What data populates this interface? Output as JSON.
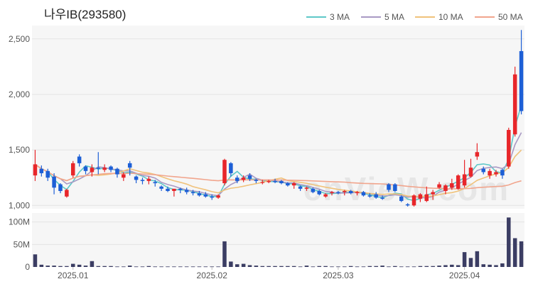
{
  "chart_data": [
    {
      "type": "candlestick",
      "title": "나우IB(293580)",
      "watermark": "enVieW.com",
      "x_ticks": [
        "2025.01",
        "2025.02",
        "2025.03",
        "2025.04"
      ],
      "y_ticks": [
        "1,000",
        "1,500",
        "2,000",
        "2,500"
      ],
      "ylim": [
        970,
        2620
      ],
      "legend": [
        {
          "label": "3 MA",
          "color": "#5ec8c8"
        },
        {
          "label": "5 MA",
          "color": "#a99ac4"
        },
        {
          "label": "10 MA",
          "color": "#f0c27a"
        },
        {
          "label": "50 MA",
          "color": "#f1a58d"
        }
      ],
      "colors": {
        "up": "#e8262a",
        "down": "#1d5fd6",
        "volume": "#3b3d63",
        "plot_bg": "#f6f6f6"
      },
      "series_note": "OHLC per trading day, KRW",
      "ohlc": [
        [
          1270,
          1500,
          1220,
          1370
        ],
        [
          1330,
          1360,
          1260,
          1290
        ],
        [
          1310,
          1330,
          1220,
          1250
        ],
        [
          1260,
          1290,
          1100,
          1160
        ],
        [
          1190,
          1200,
          1110,
          1130
        ],
        [
          1080,
          1150,
          1070,
          1140
        ],
        [
          1270,
          1400,
          1250,
          1380
        ],
        [
          1440,
          1460,
          1350,
          1380
        ],
        [
          1350,
          1360,
          1280,
          1310
        ],
        [
          1300,
          1370,
          1260,
          1340
        ],
        [
          1340,
          1480,
          1280,
          1330
        ],
        [
          1320,
          1370,
          1300,
          1340
        ],
        [
          1350,
          1360,
          1300,
          1320
        ],
        [
          1330,
          1340,
          1250,
          1280
        ],
        [
          1250,
          1300,
          1220,
          1280
        ],
        [
          1380,
          1400,
          1270,
          1340
        ],
        [
          1260,
          1270,
          1200,
          1230
        ],
        [
          1230,
          1250,
          1190,
          1220
        ],
        [
          1220,
          1260,
          1190,
          1240
        ],
        [
          1210,
          1230,
          1170,
          1200
        ],
        [
          1170,
          1180,
          1130,
          1150
        ],
        [
          1150,
          1170,
          1120,
          1130
        ],
        [
          1130,
          1150,
          1080,
          1150
        ],
        [
          1150,
          1160,
          1110,
          1140
        ],
        [
          1140,
          1160,
          1100,
          1120
        ],
        [
          1120,
          1140,
          1090,
          1110
        ],
        [
          1110,
          1130,
          1080,
          1090
        ],
        [
          1100,
          1120,
          1070,
          1080
        ],
        [
          1080,
          1100,
          1050,
          1070
        ],
        [
          1070,
          1100,
          1060,
          1090
        ],
        [
          1200,
          1420,
          1180,
          1410
        ],
        [
          1380,
          1390,
          1260,
          1290
        ],
        [
          1250,
          1270,
          1200,
          1220
        ],
        [
          1230,
          1270,
          1210,
          1250
        ],
        [
          1270,
          1290,
          1220,
          1240
        ],
        [
          1230,
          1240,
          1200,
          1220
        ],
        [
          1210,
          1230,
          1190,
          1210
        ],
        [
          1210,
          1230,
          1200,
          1220
        ],
        [
          1220,
          1240,
          1200,
          1210
        ],
        [
          1220,
          1230,
          1190,
          1200
        ],
        [
          1200,
          1210,
          1170,
          1180
        ],
        [
          1180,
          1210,
          1150,
          1200
        ],
        [
          1170,
          1180,
          1130,
          1150
        ],
        [
          1150,
          1170,
          1130,
          1160
        ],
        [
          1150,
          1160,
          1110,
          1120
        ],
        [
          1130,
          1140,
          1090,
          1100
        ],
        [
          1080,
          1110,
          1070,
          1100
        ],
        [
          1110,
          1130,
          1090,
          1120
        ],
        [
          1120,
          1130,
          1100,
          1110
        ],
        [
          1120,
          1140,
          1090,
          1130
        ],
        [
          1130,
          1140,
          1100,
          1110
        ],
        [
          1110,
          1130,
          1090,
          1120
        ],
        [
          1120,
          1130,
          1080,
          1090
        ],
        [
          1090,
          1110,
          1070,
          1080
        ],
        [
          1100,
          1120,
          1060,
          1070
        ],
        [
          1070,
          1090,
          1050,
          1060
        ],
        [
          1190,
          1200,
          1120,
          1140
        ],
        [
          1190,
          1200,
          1120,
          1130
        ],
        [
          1080,
          1090,
          1030,
          1040
        ],
        [
          1010,
          1020,
          990,
          1000
        ],
        [
          1000,
          1100,
          990,
          1090
        ],
        [
          1060,
          1110,
          1030,
          1100
        ],
        [
          1040,
          1170,
          1030,
          1100
        ],
        [
          1100,
          1140,
          1050,
          1120
        ],
        [
          1160,
          1210,
          1150,
          1190
        ],
        [
          1130,
          1190,
          1100,
          1180
        ],
        [
          1160,
          1240,
          1140,
          1200
        ],
        [
          1150,
          1280,
          1140,
          1270
        ],
        [
          1180,
          1410,
          1160,
          1280
        ],
        [
          1260,
          1420,
          1250,
          1340
        ],
        [
          1440,
          1560,
          1410,
          1480
        ],
        [
          1330,
          1350,
          1280,
          1300
        ],
        [
          1270,
          1330,
          1240,
          1310
        ],
        [
          1280,
          1320,
          1260,
          1300
        ],
        [
          1320,
          1330,
          1240,
          1270
        ],
        [
          1350,
          1700,
          1330,
          1680
        ],
        [
          1640,
          2250,
          1620,
          2180
        ],
        [
          2390,
          2580,
          1820,
          1850
        ]
      ],
      "volume_ticks": [
        "0",
        "50M",
        "100M"
      ],
      "volume_max": 120,
      "volume_M": [
        28,
        5,
        3,
        3,
        2,
        2,
        7,
        5,
        3,
        13,
        2,
        2,
        2,
        1,
        1,
        3,
        1,
        1,
        2,
        1,
        1,
        1,
        1,
        1,
        1,
        1,
        1,
        1,
        1,
        1,
        57,
        12,
        6,
        7,
        4,
        3,
        2,
        2,
        2,
        2,
        2,
        2,
        1,
        3,
        1,
        2,
        2,
        1,
        1,
        1,
        2,
        1,
        1,
        2,
        2,
        3,
        1,
        2,
        1,
        1,
        1,
        2,
        2,
        2,
        3,
        4,
        5,
        4,
        33,
        20,
        35,
        6,
        5,
        4,
        8,
        110,
        64,
        57
      ]
    }
  ]
}
